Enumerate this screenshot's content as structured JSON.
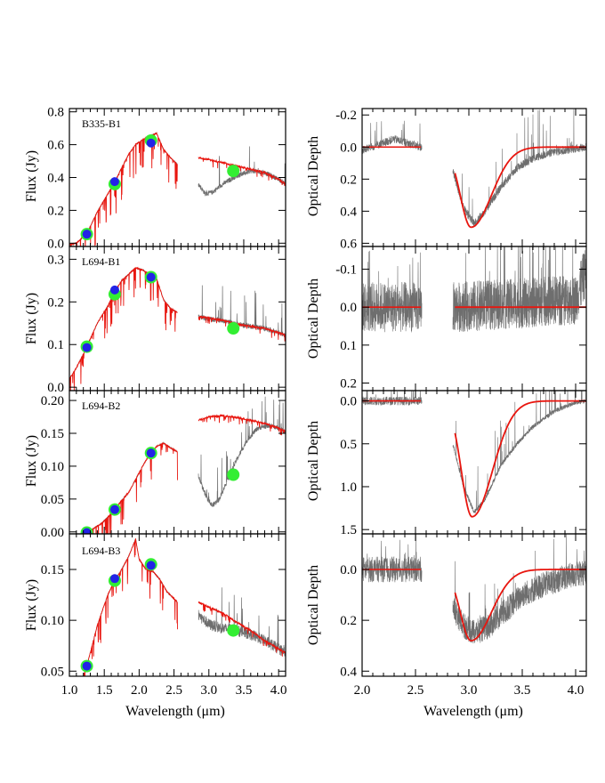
{
  "colors": {
    "observed": "#6e6e6e",
    "model": "#e8160f",
    "photometry_2mass": "#2323e6",
    "photometry_ring": "#33ee33",
    "axis": "#000000"
  },
  "chart_data": [
    {
      "type": "line",
      "column": "flux",
      "source": "B335-B1",
      "xlim": [
        1.0,
        4.1
      ],
      "ylim": [
        -0.02,
        0.82
      ],
      "yticks": [
        0.0,
        0.2,
        0.4,
        0.6,
        0.8
      ],
      "ytick_labels": [
        "0.0",
        "0.2",
        "0.4",
        "0.6",
        "0.8"
      ],
      "ylabel": "Flux (Jy)",
      "series": [],
      "photometry": [
        {
          "x": 1.25,
          "y": 0.055
        },
        {
          "x": 1.65,
          "y": 0.36
        },
        {
          "x": 2.17,
          "y": 0.625
        },
        {
          "x": 3.35,
          "y": 0.44
        }
      ],
      "photometry_inner": [
        {
          "x": 1.25,
          "y": 0.055
        },
        {
          "x": 1.65,
          "y": 0.375
        },
        {
          "x": 2.17,
          "y": 0.61
        }
      ],
      "model_break": [
        2.55,
        2.85
      ],
      "model_nodes": [
        [
          1.0,
          -0.01
        ],
        [
          1.1,
          0.0
        ],
        [
          1.25,
          0.06
        ],
        [
          1.4,
          0.19
        ],
        [
          1.55,
          0.3
        ],
        [
          1.65,
          0.37
        ],
        [
          1.75,
          0.46
        ],
        [
          1.85,
          0.54
        ],
        [
          1.95,
          0.6
        ],
        [
          2.05,
          0.63
        ],
        [
          2.15,
          0.65
        ],
        [
          2.25,
          0.67
        ],
        [
          2.35,
          0.57
        ],
        [
          2.45,
          0.52
        ],
        [
          2.55,
          0.48
        ],
        [
          2.85,
          0.52
        ],
        [
          3.0,
          0.51
        ],
        [
          3.2,
          0.49
        ],
        [
          3.4,
          0.47
        ],
        [
          3.6,
          0.45
        ],
        [
          3.8,
          0.43
        ],
        [
          4.0,
          0.39
        ],
        [
          4.1,
          0.36
        ]
      ],
      "observed_nodes": [
        [
          2.15,
          0.65
        ],
        [
          2.25,
          0.67
        ],
        [
          2.35,
          0.58
        ],
        [
          2.55,
          0.47
        ],
        [
          2.85,
          0.36
        ],
        [
          2.95,
          0.3
        ],
        [
          3.05,
          0.31
        ],
        [
          3.2,
          0.36
        ],
        [
          3.4,
          0.41
        ],
        [
          3.6,
          0.44
        ],
        [
          3.8,
          0.43
        ],
        [
          4.0,
          0.39
        ],
        [
          4.1,
          0.36
        ]
      ]
    },
    {
      "type": "line",
      "column": "flux",
      "source": "L694-B1",
      "xlim": [
        1.0,
        4.1
      ],
      "ylim": [
        -0.008,
        0.33
      ],
      "yticks": [
        0.0,
        0.1,
        0.2,
        0.3
      ],
      "ytick_labels": [
        "0.0",
        "0.1",
        "0.2",
        "0.3"
      ],
      "ylabel": "Flux (Jy)",
      "series": [],
      "photometry": [
        {
          "x": 1.25,
          "y": 0.095
        },
        {
          "x": 1.65,
          "y": 0.218
        },
        {
          "x": 2.17,
          "y": 0.258
        },
        {
          "x": 3.35,
          "y": 0.138
        }
      ],
      "photometry_inner": [
        {
          "x": 1.25,
          "y": 0.093
        },
        {
          "x": 1.65,
          "y": 0.228
        },
        {
          "x": 2.17,
          "y": 0.258
        }
      ],
      "model_break": [
        2.55,
        2.85
      ],
      "model_nodes": [
        [
          1.0,
          0.02
        ],
        [
          1.1,
          0.045
        ],
        [
          1.25,
          0.095
        ],
        [
          1.4,
          0.15
        ],
        [
          1.55,
          0.19
        ],
        [
          1.65,
          0.225
        ],
        [
          1.75,
          0.25
        ],
        [
          1.85,
          0.265
        ],
        [
          1.95,
          0.28
        ],
        [
          2.05,
          0.275
        ],
        [
          2.15,
          0.265
        ],
        [
          2.25,
          0.255
        ],
        [
          2.35,
          0.205
        ],
        [
          2.45,
          0.185
        ],
        [
          2.55,
          0.175
        ],
        [
          2.85,
          0.165
        ],
        [
          3.0,
          0.163
        ],
        [
          3.2,
          0.157
        ],
        [
          3.4,
          0.148
        ],
        [
          3.6,
          0.143
        ],
        [
          3.8,
          0.138
        ],
        [
          4.0,
          0.128
        ],
        [
          4.1,
          0.122
        ]
      ],
      "observed_nodes": [
        [
          2.15,
          0.265
        ],
        [
          2.25,
          0.25
        ],
        [
          2.35,
          0.2
        ],
        [
          2.55,
          0.175
        ],
        [
          2.85,
          0.165
        ],
        [
          3.0,
          0.16
        ],
        [
          3.2,
          0.156
        ],
        [
          3.4,
          0.148
        ],
        [
          3.6,
          0.143
        ],
        [
          3.8,
          0.138
        ],
        [
          4.0,
          0.128
        ],
        [
          4.1,
          0.122
        ]
      ]
    },
    {
      "type": "line",
      "column": "flux",
      "source": "L694-B2",
      "xlim": [
        1.0,
        4.1
      ],
      "ylim": [
        -0.003,
        0.215
      ],
      "yticks": [
        0.0,
        0.05,
        0.1,
        0.15,
        0.2
      ],
      "ytick_labels": [
        "0.00",
        "0.05",
        "0.10",
        "0.15",
        "0.20"
      ],
      "ylabel": "Flux (Jy)",
      "series": [],
      "photometry": [
        {
          "x": 1.25,
          "y": -0.001
        },
        {
          "x": 1.65,
          "y": 0.034
        },
        {
          "x": 2.17,
          "y": 0.12
        },
        {
          "x": 3.35,
          "y": 0.087
        }
      ],
      "photometry_inner": [
        {
          "x": 1.25,
          "y": -0.001
        },
        {
          "x": 1.65,
          "y": 0.034
        },
        {
          "x": 2.17,
          "y": 0.12
        }
      ],
      "model_break": [
        2.55,
        2.85
      ],
      "model_nodes": [
        [
          1.2,
          -0.003
        ],
        [
          1.3,
          0.002
        ],
        [
          1.45,
          0.012
        ],
        [
          1.55,
          0.022
        ],
        [
          1.65,
          0.034
        ],
        [
          1.75,
          0.048
        ],
        [
          1.85,
          0.06
        ],
        [
          1.95,
          0.08
        ],
        [
          2.05,
          0.1
        ],
        [
          2.15,
          0.118
        ],
        [
          2.25,
          0.13
        ],
        [
          2.35,
          0.135
        ],
        [
          2.45,
          0.128
        ],
        [
          2.55,
          0.122
        ],
        [
          2.85,
          0.17
        ],
        [
          3.0,
          0.175
        ],
        [
          3.2,
          0.177
        ],
        [
          3.4,
          0.174
        ],
        [
          3.6,
          0.17
        ],
        [
          3.8,
          0.165
        ],
        [
          4.0,
          0.158
        ],
        [
          4.1,
          0.153
        ]
      ],
      "observed_nodes": [
        [
          2.15,
          0.118
        ],
        [
          2.25,
          0.132
        ],
        [
          2.35,
          0.135
        ],
        [
          2.55,
          0.122
        ],
        [
          2.85,
          0.085
        ],
        [
          2.95,
          0.055
        ],
        [
          3.05,
          0.04
        ],
        [
          3.15,
          0.05
        ],
        [
          3.25,
          0.075
        ],
        [
          3.4,
          0.11
        ],
        [
          3.55,
          0.14
        ],
        [
          3.7,
          0.158
        ],
        [
          3.85,
          0.162
        ],
        [
          4.0,
          0.158
        ],
        [
          4.1,
          0.152
        ]
      ]
    },
    {
      "type": "line",
      "column": "flux",
      "source": "L694-B3",
      "xlim": [
        1.0,
        4.1
      ],
      "ylim": [
        0.045,
        0.185
      ],
      "yticks": [
        0.05,
        0.1,
        0.15
      ],
      "ytick_labels": [
        "0.05",
        "0.10",
        "0.15"
      ],
      "ylabel": "Flux (Jy)",
      "xlabel": "Wavelength (μm)",
      "xticks": [
        1.0,
        1.5,
        2.0,
        2.5,
        3.0,
        3.5,
        4.0
      ],
      "xtick_labels": [
        "1.0",
        "1.5",
        "2.0",
        "2.5",
        "3.0",
        "3.5",
        "4.0"
      ],
      "series": [],
      "photometry": [
        {
          "x": 1.25,
          "y": 0.055
        },
        {
          "x": 1.65,
          "y": 0.139
        },
        {
          "x": 2.17,
          "y": 0.155
        },
        {
          "x": 3.35,
          "y": 0.09
        }
      ],
      "photometry_inner": [
        {
          "x": 1.25,
          "y": 0.055
        },
        {
          "x": 1.65,
          "y": 0.141
        },
        {
          "x": 2.17,
          "y": 0.154
        }
      ],
      "model_break": [
        2.55,
        2.85
      ],
      "model_nodes": [
        [
          1.2,
          0.045
        ],
        [
          1.25,
          0.055
        ],
        [
          1.4,
          0.095
        ],
        [
          1.55,
          0.125
        ],
        [
          1.65,
          0.139
        ],
        [
          1.75,
          0.15
        ],
        [
          1.85,
          0.163
        ],
        [
          1.95,
          0.18
        ],
        [
          2.0,
          0.16
        ],
        [
          2.1,
          0.15
        ],
        [
          2.2,
          0.148
        ],
        [
          2.3,
          0.14
        ],
        [
          2.4,
          0.128
        ],
        [
          2.55,
          0.118
        ],
        [
          2.85,
          0.118
        ],
        [
          3.0,
          0.113
        ],
        [
          3.2,
          0.107
        ],
        [
          3.4,
          0.098
        ],
        [
          3.6,
          0.09
        ],
        [
          3.8,
          0.08
        ],
        [
          4.0,
          0.072
        ],
        [
          4.1,
          0.068
        ]
      ],
      "observed_nodes": [
        [
          2.17,
          0.155
        ],
        [
          2.3,
          0.14
        ],
        [
          2.55,
          0.118
        ],
        [
          2.85,
          0.105
        ],
        [
          3.0,
          0.096
        ],
        [
          3.2,
          0.092
        ],
        [
          3.4,
          0.09
        ],
        [
          3.6,
          0.086
        ],
        [
          3.8,
          0.08
        ],
        [
          4.0,
          0.072
        ],
        [
          4.1,
          0.068
        ]
      ]
    },
    {
      "type": "line",
      "column": "depth",
      "source": "B335-B1",
      "xlim": [
        2.0,
        4.1
      ],
      "ylim": [
        0.62,
        -0.24
      ],
      "inverted": true,
      "yticks": [
        -0.2,
        0.0,
        0.2,
        0.4,
        0.6
      ],
      "ytick_labels": [
        "-0.2",
        "0.0",
        "0.2",
        "0.4",
        "0.6"
      ],
      "ylabel": "Optical Depth",
      "series": [],
      "fit": {
        "center": 3.02,
        "peak": 0.5,
        "sigma_left": 0.1,
        "sigma_right": 0.19,
        "xstart": 2.87
      },
      "observed_nodes": [
        [
          2.85,
          0.15
        ],
        [
          2.95,
          0.38
        ],
        [
          3.05,
          0.48
        ],
        [
          3.15,
          0.4
        ],
        [
          3.3,
          0.25
        ],
        [
          3.45,
          0.13
        ],
        [
          3.6,
          0.07
        ],
        [
          3.8,
          0.03
        ],
        [
          4.0,
          0.01
        ],
        [
          4.1,
          0.0
        ]
      ]
    },
    {
      "type": "line",
      "column": "depth",
      "source": "L694-B1",
      "xlim": [
        2.0,
        4.1
      ],
      "ylim": [
        0.22,
        -0.16
      ],
      "inverted": true,
      "yticks": [
        -0.1,
        0.0,
        0.1,
        0.2
      ],
      "ytick_labels": [
        "-0.1",
        "0.0",
        "0.1",
        "0.2"
      ],
      "ylabel": "Optical Depth",
      "series": [],
      "fit": {
        "center": 3.0,
        "peak": 0.0,
        "sigma_left": 0.1,
        "sigma_right": 0.2,
        "xstart": 2.87
      },
      "observed_nodes": [
        [
          2.85,
          0.0
        ],
        [
          3.5,
          -0.01
        ],
        [
          4.0,
          -0.02
        ],
        [
          4.1,
          -0.1
        ]
      ]
    },
    {
      "type": "line",
      "column": "depth",
      "source": "L694-B2",
      "xlim": [
        2.0,
        4.1
      ],
      "ylim": [
        1.55,
        -0.12
      ],
      "inverted": true,
      "yticks": [
        0.0,
        0.5,
        1.0,
        1.5
      ],
      "ytick_labels": [
        "0.0",
        "0.5",
        "1.0",
        "1.5"
      ],
      "ylabel": "Optical Depth",
      "series": [],
      "fit": {
        "center": 3.03,
        "peak": 1.35,
        "sigma_left": 0.1,
        "sigma_right": 0.19,
        "xstart": 2.87
      },
      "observed_nodes": [
        [
          2.85,
          0.5
        ],
        [
          2.95,
          1.0
        ],
        [
          3.05,
          1.3
        ],
        [
          3.15,
          1.15
        ],
        [
          3.3,
          0.75
        ],
        [
          3.45,
          0.5
        ],
        [
          3.6,
          0.3
        ],
        [
          3.8,
          0.12
        ],
        [
          4.0,
          0.02
        ],
        [
          4.1,
          0.0
        ]
      ]
    },
    {
      "type": "line",
      "column": "depth",
      "source": "L694-B3",
      "xlim": [
        2.0,
        4.1
      ],
      "ylim": [
        0.42,
        -0.14
      ],
      "inverted": true,
      "yticks": [
        0.0,
        0.2,
        0.4
      ],
      "ytick_labels": [
        "0.0",
        "0.2",
        "0.4"
      ],
      "ylabel": "Optical Depth",
      "xlabel": "Wavelength (μm)",
      "xticks": [
        2.0,
        2.5,
        3.0,
        3.5,
        4.0
      ],
      "xtick_labels": [
        "2.0",
        "2.5",
        "3.0",
        "3.5",
        "4.0"
      ],
      "series": [],
      "fit": {
        "center": 3.02,
        "peak": 0.28,
        "sigma_left": 0.1,
        "sigma_right": 0.19,
        "xstart": 2.87
      },
      "observed_nodes": [
        [
          2.85,
          0.15
        ],
        [
          2.95,
          0.22
        ],
        [
          3.05,
          0.25
        ],
        [
          3.2,
          0.22
        ],
        [
          3.35,
          0.16
        ],
        [
          3.5,
          0.1
        ],
        [
          3.7,
          0.06
        ],
        [
          3.9,
          0.03
        ],
        [
          4.1,
          0.01
        ]
      ]
    }
  ],
  "labels": {
    "source_b335": "B335-B1",
    "source_l694_b1": "L694-B1",
    "source_l694_b2": "L694-B2",
    "source_l694_b3": "L694-B3",
    "flux_ylabel": "Flux (Jy)",
    "depth_ylabel": "Optical Depth",
    "xlabel_left": "Wavelength (μm)",
    "xlabel_right": "Wavelength (μm)"
  }
}
